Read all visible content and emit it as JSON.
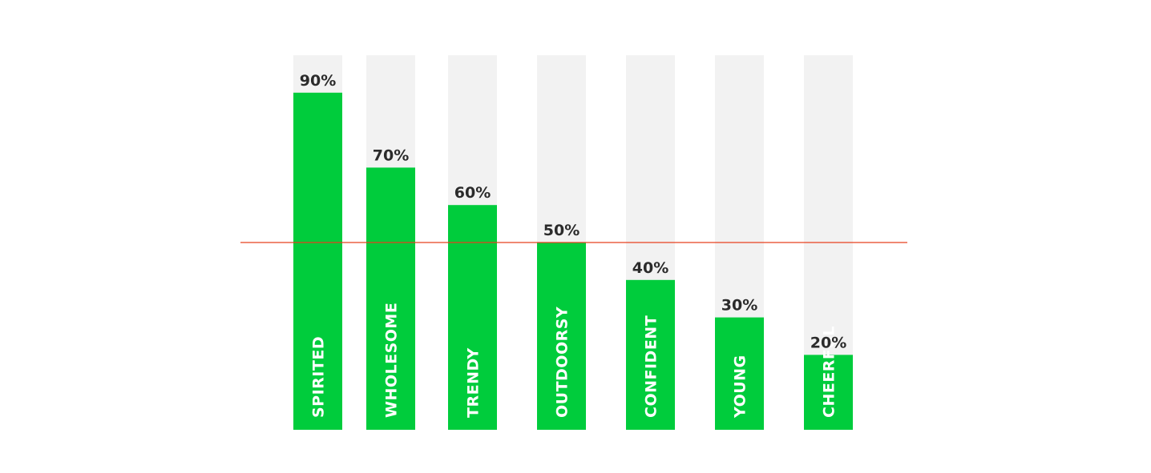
{
  "chart_data": {
    "type": "bar",
    "categories": [
      "SPIRITED",
      "WHOLESOME",
      "TRENDY",
      "OUTDOORSY",
      "CONFIDENT",
      "YOUNG",
      "CHEERFUL"
    ],
    "values": [
      90,
      70,
      60,
      50,
      40,
      30,
      20
    ],
    "value_labels": [
      "90%",
      "70%",
      "60%",
      "50%",
      "40%",
      "30%",
      "20%"
    ],
    "ylim": [
      0,
      100
    ],
    "reference_line": 50,
    "title": "",
    "xlabel": "",
    "ylabel": "",
    "grid": false,
    "colors": {
      "bar": "#00cc3c",
      "track": "#f2f2f2",
      "reference_line": "#e8401e",
      "value_text": "#2b2b2b",
      "category_text": "#ffffff"
    }
  }
}
